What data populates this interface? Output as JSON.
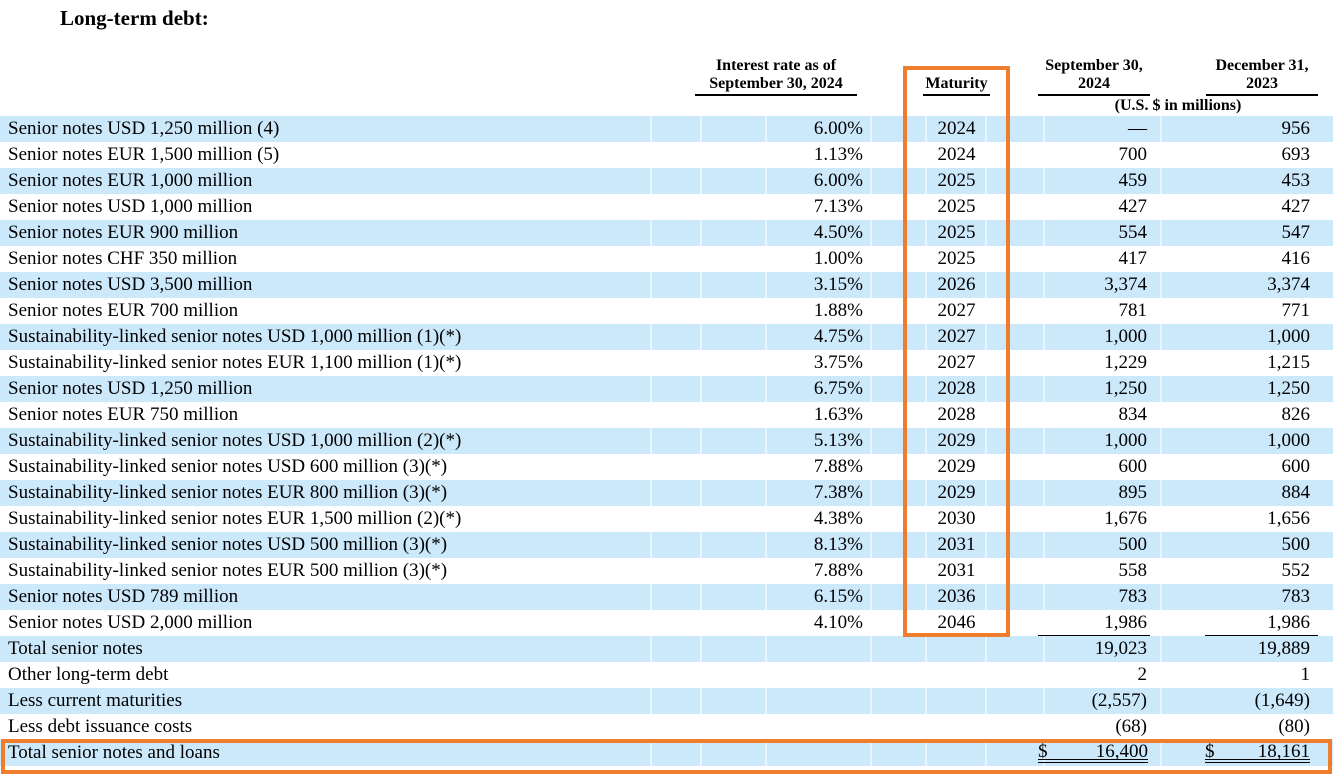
{
  "title": "Long-term debt:",
  "colors": {
    "highlight": "#ee7d2e",
    "row_stripe": "#cce8fb"
  },
  "table": {
    "headers": {
      "interest_rate_line1": "Interest rate as of",
      "interest_rate_line2": "September 30, 2024",
      "maturity": "Maturity",
      "period1_line1": "September 30,",
      "period1_line2": "2024",
      "period2_line1": "December 31,",
      "period2_line2": "2023",
      "units_note": "(U.S. $ in millions)"
    },
    "rows": [
      {
        "label": "Senior notes USD 1,250 million (4)",
        "rate": "6.00%",
        "maturity": "2024",
        "v2024": "—",
        "v2023": "956"
      },
      {
        "label": "Senior notes EUR 1,500 million (5)",
        "rate": "1.13%",
        "maturity": "2024",
        "v2024": "700",
        "v2023": "693"
      },
      {
        "label": "Senior notes EUR 1,000 million",
        "rate": "6.00%",
        "maturity": "2025",
        "v2024": "459",
        "v2023": "453"
      },
      {
        "label": "Senior notes USD 1,000 million",
        "rate": "7.13%",
        "maturity": "2025",
        "v2024": "427",
        "v2023": "427"
      },
      {
        "label": "Senior notes EUR 900 million",
        "rate": "4.50%",
        "maturity": "2025",
        "v2024": "554",
        "v2023": "547"
      },
      {
        "label": "Senior notes CHF 350 million",
        "rate": "1.00%",
        "maturity": "2025",
        "v2024": "417",
        "v2023": "416"
      },
      {
        "label": "Senior notes USD 3,500 million",
        "rate": "3.15%",
        "maturity": "2026",
        "v2024": "3,374",
        "v2023": "3,374"
      },
      {
        "label": "Senior notes EUR 700 million",
        "rate": "1.88%",
        "maturity": "2027",
        "v2024": "781",
        "v2023": "771"
      },
      {
        "label": "Sustainability-linked senior notes USD 1,000 million (1)(*)",
        "rate": "4.75%",
        "maturity": "2027",
        "v2024": "1,000",
        "v2023": "1,000"
      },
      {
        "label": "Sustainability-linked senior notes EUR 1,100 million (1)(*)",
        "rate": "3.75%",
        "maturity": "2027",
        "v2024": "1,229",
        "v2023": "1,215"
      },
      {
        "label": "Senior notes USD 1,250 million",
        "rate": "6.75%",
        "maturity": "2028",
        "v2024": "1,250",
        "v2023": "1,250"
      },
      {
        "label": "Senior notes EUR 750 million",
        "rate": "1.63%",
        "maturity": "2028",
        "v2024": "834",
        "v2023": "826"
      },
      {
        "label": "Sustainability-linked senior notes USD 1,000 million (2)(*)",
        "rate": "5.13%",
        "maturity": "2029",
        "v2024": "1,000",
        "v2023": "1,000"
      },
      {
        "label": "Sustainability-linked senior notes USD 600 million (3)(*)",
        "rate": "7.88%",
        "maturity": "2029",
        "v2024": "600",
        "v2023": "600"
      },
      {
        "label": "Sustainability-linked senior notes EUR 800 million (3)(*)",
        "rate": "7.38%",
        "maturity": "2029",
        "v2024": "895",
        "v2023": "884"
      },
      {
        "label": "Sustainability-linked senior notes EUR 1,500 million (2)(*)",
        "rate": "4.38%",
        "maturity": "2030",
        "v2024": "1,676",
        "v2023": "1,656"
      },
      {
        "label": "Sustainability-linked senior notes USD 500 million (3)(*)",
        "rate": "8.13%",
        "maturity": "2031",
        "v2024": "500",
        "v2023": "500"
      },
      {
        "label": "Sustainability-linked senior notes EUR 500 million (3)(*)",
        "rate": "7.88%",
        "maturity": "2031",
        "v2024": "558",
        "v2023": "552"
      },
      {
        "label": "Senior notes USD 789 million",
        "rate": "6.15%",
        "maturity": "2036",
        "v2024": "783",
        "v2023": "783"
      },
      {
        "label": "Senior notes USD 2,000 million",
        "rate": "4.10%",
        "maturity": "2046",
        "v2024": "1,986",
        "v2023": "1,986"
      }
    ],
    "summary_rows": [
      {
        "label": "Total senior notes",
        "v2024": "19,023",
        "v2023": "19,889"
      },
      {
        "label": "Other long-term debt",
        "v2024": "2",
        "v2023": "1"
      },
      {
        "label": "Less current maturities",
        "v2024": "(2,557)",
        "v2023": "(1,649)"
      },
      {
        "label": "Less debt issuance costs",
        "v2024": "(68)",
        "v2023": "(80)"
      }
    ],
    "total_row": {
      "label": "Total senior notes and loans",
      "currency": "$",
      "v2024": "16,400",
      "v2023": "18,161"
    }
  }
}
